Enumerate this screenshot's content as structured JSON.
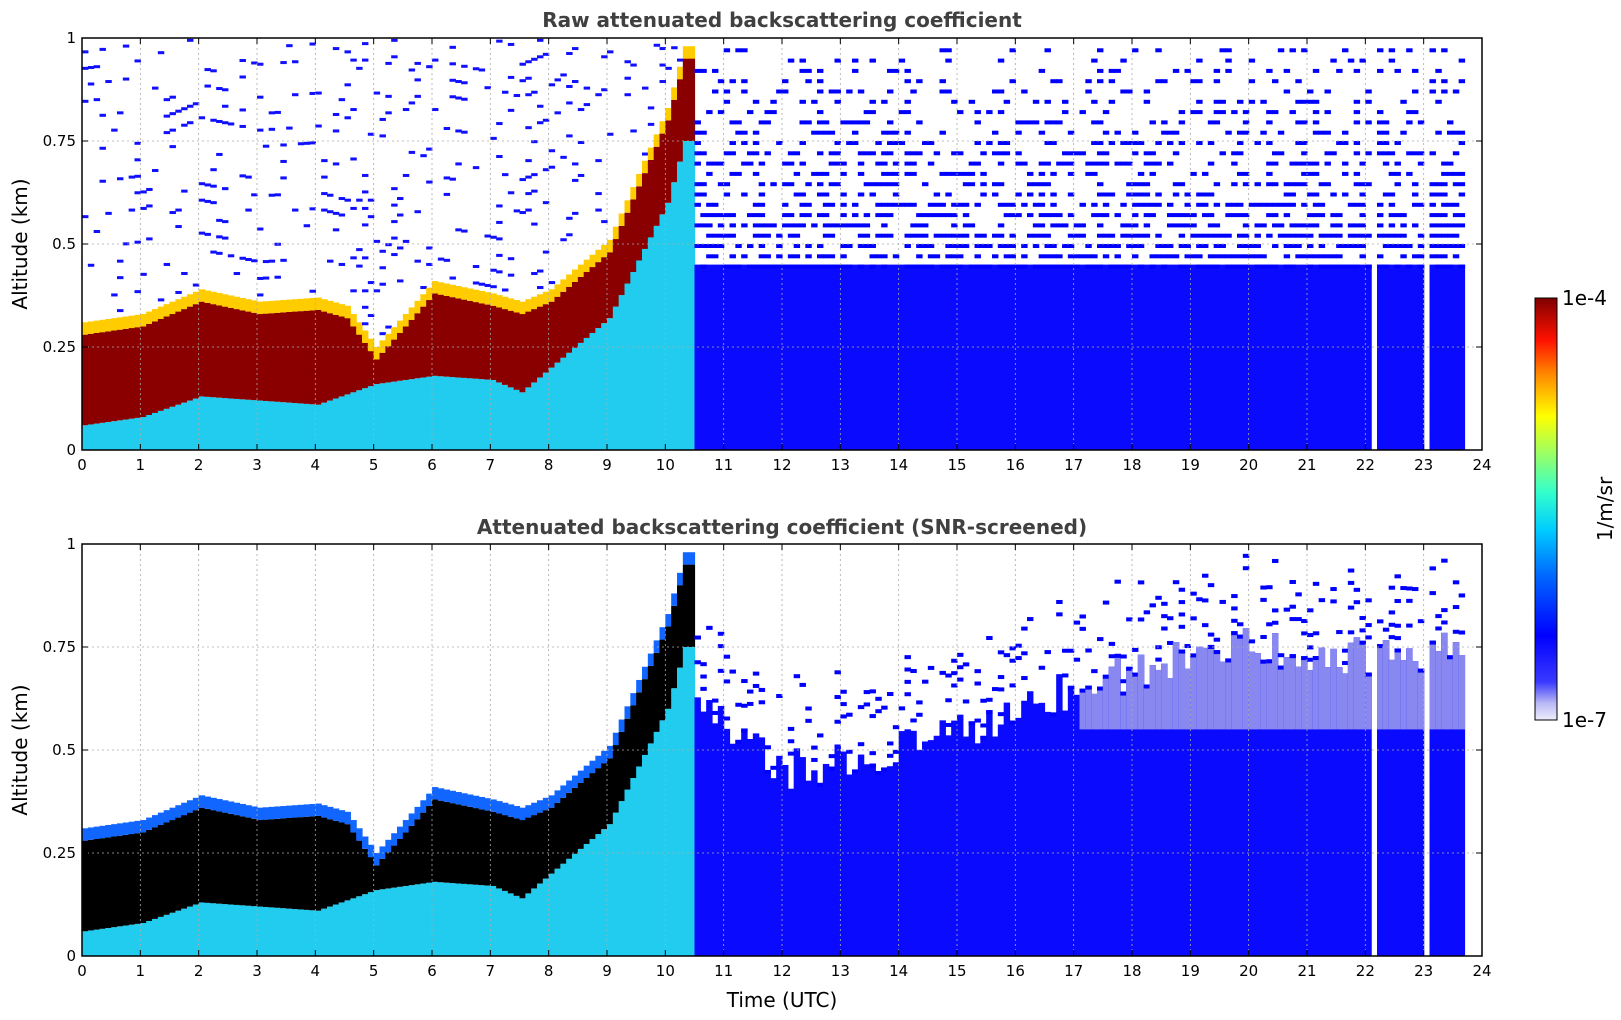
{
  "figure": {
    "xlabel": "Time (UTC)"
  },
  "chart_data": [
    {
      "type": "heatmap",
      "title": "Raw attenuated backscattering coefficient",
      "xlabel": "",
      "ylabel": "Altitude (km)",
      "xlim": [
        0,
        24
      ],
      "ylim": [
        0,
        1
      ],
      "x_ticks": [
        0,
        1,
        2,
        3,
        4,
        5,
        6,
        7,
        8,
        9,
        10,
        11,
        12,
        13,
        14,
        15,
        16,
        17,
        18,
        19,
        20,
        21,
        22,
        23,
        24
      ],
      "y_ticks": [
        0,
        0.25,
        0.5,
        0.75,
        1
      ],
      "y_tick_labels": [
        "0",
        "0.25",
        "0.5",
        "0.75",
        "1"
      ],
      "grid": true,
      "screened": false,
      "data_end_hour": 23.7,
      "missing_hours": [
        22.1,
        23.0
      ],
      "layer_top_km": [
        [
          0,
          0.28
        ],
        [
          1,
          0.3
        ],
        [
          2,
          0.36
        ],
        [
          3,
          0.33
        ],
        [
          4,
          0.34
        ],
        [
          4.5,
          0.32
        ],
        [
          5,
          0.22
        ],
        [
          6,
          0.38
        ],
        [
          7,
          0.35
        ],
        [
          7.5,
          0.33
        ],
        [
          8,
          0.36
        ],
        [
          9,
          0.48
        ],
        [
          10,
          0.8
        ],
        [
          10.3,
          0.95
        ]
      ],
      "layer_bottom_km": [
        [
          0,
          0.06
        ],
        [
          1,
          0.08
        ],
        [
          2,
          0.13
        ],
        [
          3,
          0.12
        ],
        [
          4,
          0.11
        ],
        [
          5,
          0.16
        ],
        [
          6,
          0.18
        ],
        [
          7,
          0.17
        ],
        [
          7.5,
          0.14
        ],
        [
          8,
          0.2
        ],
        [
          9,
          0.32
        ],
        [
          10,
          0.6
        ],
        [
          10.3,
          0.75
        ]
      ]
    },
    {
      "type": "heatmap",
      "title": "Attenuated backscattering coefficient (SNR-screened)",
      "xlabel": "Time (UTC)",
      "ylabel": "Altitude (km)",
      "xlim": [
        0,
        24
      ],
      "ylim": [
        0,
        1
      ],
      "x_ticks": [
        0,
        1,
        2,
        3,
        4,
        5,
        6,
        7,
        8,
        9,
        10,
        11,
        12,
        13,
        14,
        15,
        16,
        17,
        18,
        19,
        20,
        21,
        22,
        23,
        24
      ],
      "y_ticks": [
        0,
        0.25,
        0.5,
        0.75,
        1
      ],
      "y_tick_labels": [
        "0",
        "0.25",
        "0.5",
        "0.75",
        "1"
      ],
      "grid": true,
      "screened": true,
      "data_end_hour": 23.7,
      "missing_hours": [
        22.1,
        23.0
      ],
      "signal_top_km": [
        [
          10.5,
          0.65
        ],
        [
          12,
          0.5
        ],
        [
          14,
          0.55
        ],
        [
          16,
          0.65
        ],
        [
          18,
          0.75
        ],
        [
          20,
          0.8
        ],
        [
          22,
          0.78
        ],
        [
          23.7,
          0.8
        ]
      ]
    }
  ],
  "colorbar": {
    "label": "1/m/sr",
    "max_label": "1e-4",
    "min_label": "1e-7",
    "vmin": 1e-07,
    "vmax": 0.0001,
    "scale": "log",
    "colormap": "jet",
    "low_color": "#e8e8f8",
    "high_color": "#800000"
  }
}
